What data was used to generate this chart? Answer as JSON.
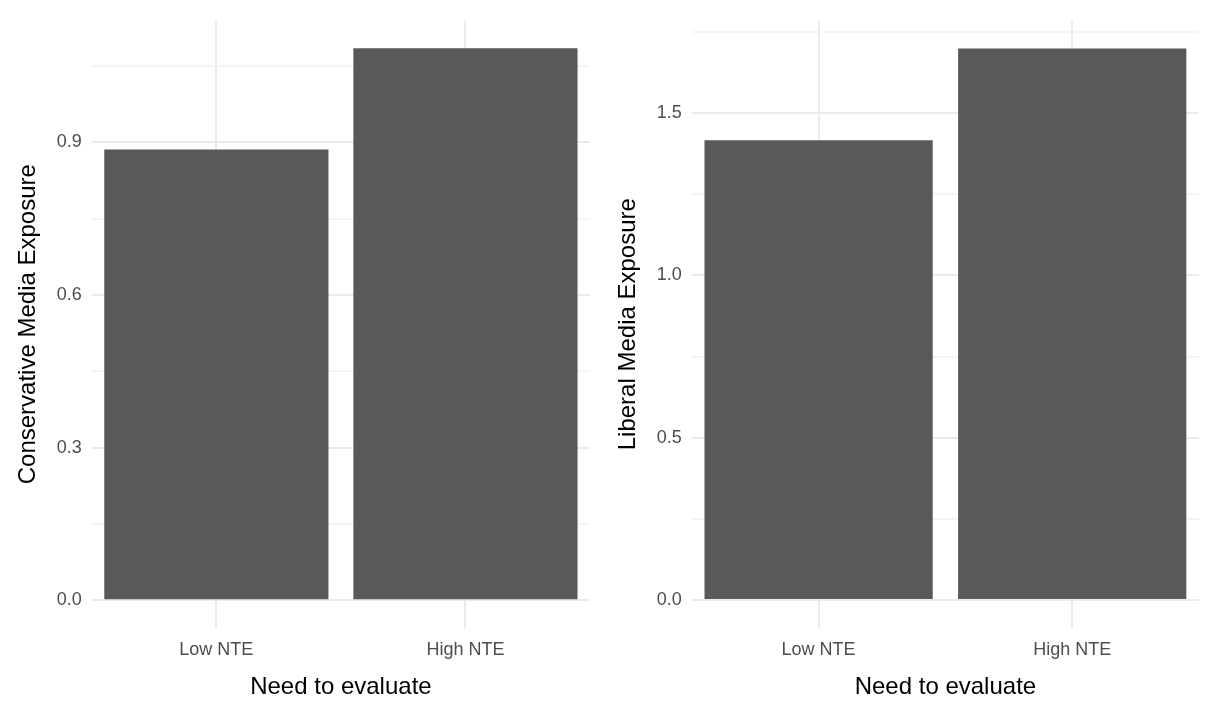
{
  "chart_data": [
    {
      "type": "bar",
      "categories": [
        "Low NTE",
        "High NTE"
      ],
      "values": [
        0.886,
        1.085
      ],
      "color": "#595959",
      "xlabel": "Need to evaluate",
      "ylabel": "Conservative Media Exposure",
      "ylim": [
        -0.054,
        1.139
      ],
      "yticks": [
        {
          "value": 0,
          "label": "0.0"
        },
        {
          "value": 0.15,
          "label": null
        },
        {
          "value": 0.3,
          "label": "0.3"
        },
        {
          "value": 0.45,
          "label": null
        },
        {
          "value": 0.6,
          "label": "0.6"
        },
        {
          "value": 0.75,
          "label": null
        },
        {
          "value": 0.9,
          "label": "0.9"
        },
        {
          "value": 1.05,
          "label": null
        }
      ],
      "grid": true
    },
    {
      "type": "bar",
      "categories": [
        "Low NTE",
        "High NTE"
      ],
      "values": [
        1.416,
        1.699
      ],
      "color": "#595959",
      "xlabel": "Need to evaluate",
      "ylabel": "Liberal Media Exposure",
      "ylim": [
        -0.085,
        1.784
      ],
      "yticks": [
        {
          "value": 0,
          "label": "0.0"
        },
        {
          "value": 0.25,
          "label": null
        },
        {
          "value": 0.5,
          "label": "0.5"
        },
        {
          "value": 0.75,
          "label": null
        },
        {
          "value": 1,
          "label": "1.0"
        },
        {
          "value": 1.25,
          "label": null
        },
        {
          "value": 1.5,
          "label": "1.5"
        },
        {
          "value": 1.75,
          "label": null
        }
      ],
      "grid": true
    }
  ]
}
